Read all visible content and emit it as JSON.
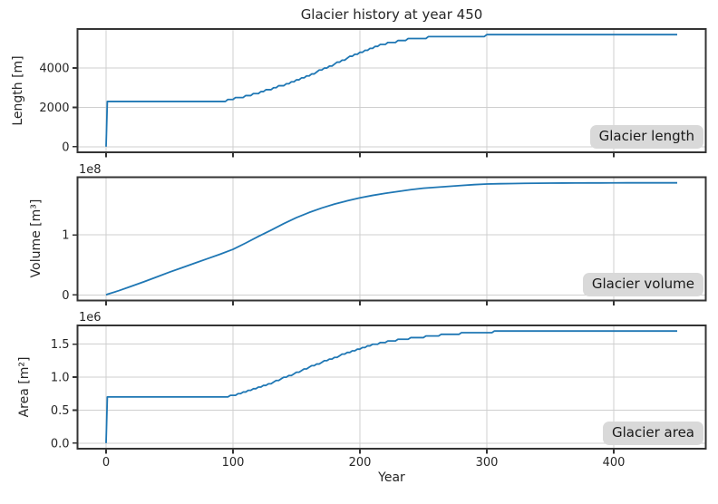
{
  "figure": {
    "title": "Glacier history at year 450",
    "xlabel": "Year",
    "background": "#ffffff",
    "line_color": "#1f77b4",
    "grid_color": "#cfcfcf",
    "spine_color": "#343434",
    "tick_color": "#343434",
    "text_color": "#262626",
    "annotation_bg": "#d9d9d9",
    "xlim": [
      -22.5,
      472.5
    ],
    "xticks": [
      0,
      100,
      200,
      300,
      400
    ],
    "xtick_labels": [
      "0",
      "100",
      "200",
      "300",
      "400"
    ],
    "years": [
      0,
      1,
      10,
      20,
      30,
      40,
      50,
      60,
      70,
      80,
      90,
      100,
      110,
      120,
      130,
      140,
      150,
      160,
      170,
      180,
      190,
      200,
      210,
      220,
      230,
      240,
      250,
      260,
      270,
      280,
      290,
      300,
      310,
      320,
      330,
      340,
      350,
      360,
      370,
      380,
      390,
      400,
      410,
      420,
      430,
      440,
      450
    ]
  },
  "chart_data": [
    {
      "type": "line",
      "series_name": "Glacier length",
      "ylabel": "Length [m]",
      "annotation": "Glacier length",
      "offset_text": "",
      "units": "m",
      "ylim": [
        -285,
        5985
      ],
      "ytick_values": [
        0,
        2000,
        4000
      ],
      "ytick_labels": [
        "0",
        "2000",
        "4000"
      ],
      "quantize": 100,
      "y": [
        0,
        2330,
        2330,
        2330,
        2330,
        2330,
        2330,
        2330,
        2330,
        2330,
        2330,
        2470,
        2620,
        2790,
        2980,
        3190,
        3420,
        3680,
        3960,
        4250,
        4550,
        4840,
        5090,
        5280,
        5420,
        5520,
        5590,
        5630,
        5660,
        5680,
        5695,
        5700,
        5705,
        5705,
        5705,
        5705,
        5705,
        5705,
        5705,
        5705,
        5705,
        5705,
        5705,
        5705,
        5705,
        5705,
        5705
      ]
    },
    {
      "type": "line",
      "series_name": "Glacier volume",
      "ylabel": "Volume [m³]",
      "annotation": "Glacier volume",
      "offset_text": "1e8",
      "units": "1e8 m³",
      "ylim": [
        -0.0935,
        1.9635
      ],
      "ytick_values": [
        0,
        1
      ],
      "ytick_labels": [
        "0",
        "1"
      ],
      "quantize": 0,
      "y": [
        0,
        0.01,
        0.07,
        0.145,
        0.22,
        0.3,
        0.38,
        0.455,
        0.53,
        0.605,
        0.68,
        0.76,
        0.865,
        0.975,
        1.08,
        1.19,
        1.29,
        1.375,
        1.45,
        1.515,
        1.57,
        1.62,
        1.66,
        1.695,
        1.725,
        1.755,
        1.78,
        1.795,
        1.81,
        1.825,
        1.84,
        1.85,
        1.855,
        1.858,
        1.861,
        1.863,
        1.865,
        1.866,
        1.867,
        1.868,
        1.868,
        1.869,
        1.87,
        1.87,
        1.87,
        1.87,
        1.87
      ]
    },
    {
      "type": "line",
      "series_name": "Glacier area",
      "ylabel": "Area [m²]",
      "annotation": "Glacier area",
      "offset_text": "1e6",
      "units": "1e6 m²",
      "ylim": [
        -0.085,
        1.785
      ],
      "ytick_values": [
        0,
        0.5,
        1.0,
        1.5
      ],
      "ytick_labels": [
        "0.0",
        "0.5",
        "1.0",
        "1.5"
      ],
      "quantize": 0.025,
      "y": [
        0,
        0.7,
        0.7,
        0.7,
        0.7,
        0.7,
        0.7,
        0.7,
        0.7,
        0.7,
        0.7,
        0.735,
        0.79,
        0.85,
        0.92,
        1.0,
        1.08,
        1.16,
        1.24,
        1.31,
        1.38,
        1.445,
        1.5,
        1.545,
        1.575,
        1.6,
        1.62,
        1.645,
        1.662,
        1.676,
        1.688,
        1.697,
        1.703,
        1.705,
        1.705,
        1.705,
        1.705,
        1.705,
        1.705,
        1.705,
        1.705,
        1.705,
        1.705,
        1.705,
        1.705,
        1.705,
        1.705
      ]
    }
  ]
}
